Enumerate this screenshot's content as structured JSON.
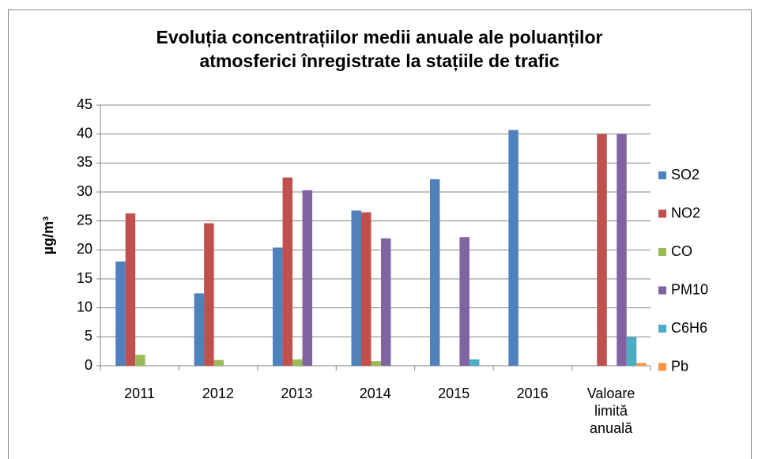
{
  "chart_data": {
    "type": "bar",
    "title": "Evoluția concentrațiilor medii anuale ale poluanților atmosferici înregistrate la stațiile de trafic",
    "y_label": "µg/m³",
    "categories": [
      "2011",
      "2012",
      "2013",
      "2014",
      "2015",
      "2016",
      "Valoare limită anuală"
    ],
    "series": [
      {
        "name": "SO2",
        "color": "#4f81bd",
        "values": [
          18.0,
          12.5,
          20.4,
          26.8,
          32.2,
          40.7,
          null
        ]
      },
      {
        "name": "NO2",
        "color": "#c0504d",
        "values": [
          26.3,
          24.6,
          32.5,
          26.5,
          null,
          null,
          40
        ]
      },
      {
        "name": "CO",
        "color": "#9bbb59",
        "values": [
          1.9,
          1.0,
          1.1,
          0.8,
          null,
          null,
          null
        ]
      },
      {
        "name": "PM10",
        "color": "#8064a2",
        "values": [
          null,
          null,
          30.3,
          22.0,
          22.2,
          null,
          40
        ]
      },
      {
        "name": "C6H6",
        "color": "#4bacc6",
        "values": [
          null,
          null,
          null,
          null,
          1.1,
          null,
          5
        ]
      },
      {
        "name": "Pb",
        "color": "#f79646",
        "values": [
          null,
          null,
          null,
          null,
          null,
          null,
          0.5
        ]
      }
    ],
    "ylim": [
      0,
      45
    ],
    "yticks": [
      0,
      5,
      10,
      15,
      20,
      25,
      30,
      35,
      40,
      45
    ],
    "grid": true,
    "legend": "right"
  }
}
